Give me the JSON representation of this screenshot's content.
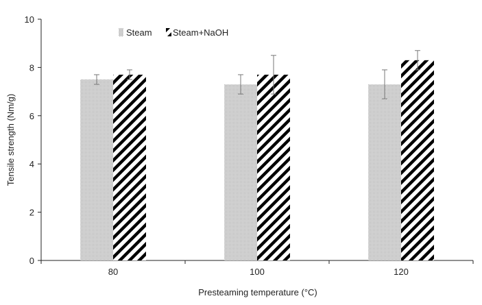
{
  "chart_data": {
    "type": "bar",
    "title": "",
    "xlabel": "Presteaming temperature (°C)",
    "ylabel": "Tensile strength (Nm/g)",
    "categories": [
      "80",
      "100",
      "120"
    ],
    "ylim": [
      0,
      10
    ],
    "yticks": [
      0,
      2,
      4,
      6,
      8,
      10
    ],
    "grid": false,
    "legend_position": "top-left",
    "series": [
      {
        "name": "Steam",
        "pattern": "dotted",
        "color": "#8a8a8a",
        "values": [
          7.5,
          7.3,
          7.3
        ],
        "error": [
          0.2,
          0.4,
          0.6
        ]
      },
      {
        "name": "Steam+NaOH",
        "pattern": "diagonal-stripes",
        "color": "#000000",
        "values": [
          7.7,
          7.7,
          8.3
        ],
        "error": [
          0.2,
          0.8,
          0.4
        ]
      }
    ]
  }
}
